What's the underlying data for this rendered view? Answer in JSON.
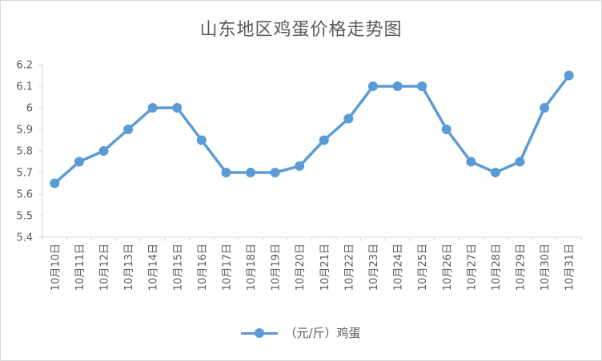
{
  "chart_data": {
    "type": "line",
    "title": "山东地区鸡蛋价格走势图",
    "categories": [
      "10月10日",
      "10月11日",
      "10月12日",
      "10月13日",
      "10月14日",
      "10月15日",
      "10月16日",
      "10月17日",
      "10月18日",
      "10月19日",
      "10月20日",
      "10月21日",
      "10月22日",
      "10月23日",
      "10月24日",
      "10月25日",
      "10月26日",
      "10月27日",
      "10月28日",
      "10月29日",
      "10月30日",
      "10月31日"
    ],
    "series": [
      {
        "name": "（元/斤）鸡蛋",
        "color": "#5b9bd5",
        "values": [
          5.65,
          5.75,
          5.8,
          5.9,
          6.0,
          6.0,
          5.85,
          5.7,
          5.7,
          5.7,
          5.73,
          5.85,
          5.95,
          6.1,
          6.1,
          6.1,
          5.9,
          5.75,
          5.7,
          5.75,
          6.0,
          6.15
        ]
      }
    ],
    "ylim": [
      5.4,
      6.2
    ],
    "yticks": [
      "5.4",
      "5.5",
      "5.6",
      "5.7",
      "5.8",
      "5.9",
      "6",
      "6.1",
      "6.2"
    ],
    "grid": false,
    "legend_position": "bottom"
  }
}
